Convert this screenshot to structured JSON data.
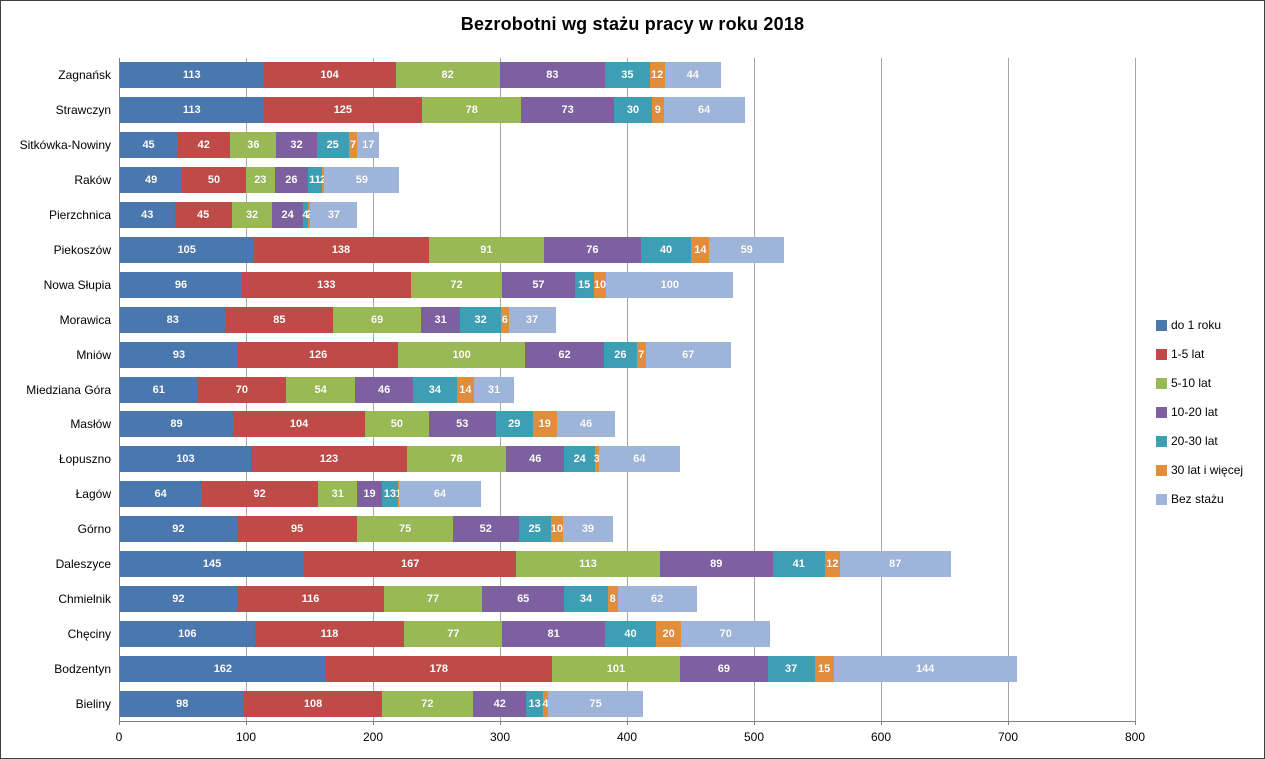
{
  "chart_data": {
    "type": "bar",
    "orientation": "horizontal",
    "stacked": true,
    "title": "Bezrobotni wg stażu pracy w roku 2018",
    "categories": [
      "Zagnańsk",
      "Strawczyn",
      "Sitkówka-Nowiny",
      "Raków",
      "Pierzchnica",
      "Piekoszów",
      "Nowa Słupia",
      "Morawica",
      "Mniów",
      "Miedziana Góra",
      "Masłów",
      "Łopuszno",
      "Łagów",
      "Górno",
      "Daleszyce",
      "Chmielnik",
      "Chęciny",
      "Bodzentyn",
      "Bieliny"
    ],
    "series": [
      {
        "name": "do 1 roku",
        "color": "#4977ae",
        "values": [
          113,
          113,
          45,
          49,
          43,
          105,
          96,
          83,
          93,
          61,
          89,
          103,
          64,
          92,
          145,
          92,
          106,
          162,
          98
        ]
      },
      {
        "name": "1-5 lat",
        "color": "#be4b48",
        "values": [
          104,
          125,
          42,
          50,
          45,
          138,
          133,
          85,
          126,
          70,
          104,
          123,
          92,
          95,
          167,
          116,
          118,
          178,
          108
        ]
      },
      {
        "name": "5-10 lat",
        "color": "#98b954",
        "values": [
          82,
          78,
          36,
          23,
          32,
          91,
          72,
          69,
          100,
          54,
          50,
          78,
          31,
          75,
          113,
          77,
          77,
          101,
          72
        ]
      },
      {
        "name": "10-20 lat",
        "color": "#7d60a0",
        "values": [
          83,
          73,
          32,
          26,
          24,
          76,
          57,
          31,
          62,
          46,
          53,
          46,
          19,
          52,
          89,
          65,
          81,
          69,
          42
        ]
      },
      {
        "name": "20-30 lat",
        "color": "#3d9fb4",
        "values": [
          35,
          30,
          25,
          11,
          4,
          40,
          15,
          32,
          26,
          34,
          29,
          24,
          13,
          25,
          41,
          34,
          40,
          37,
          13
        ]
      },
      {
        "name": "30 lat i więcej",
        "color": "#e08d3c",
        "values": [
          12,
          9,
          7,
          2,
          2,
          14,
          10,
          6,
          7,
          14,
          19,
          3,
          1,
          10,
          12,
          8,
          20,
          15,
          4
        ]
      },
      {
        "name": "Bez stażu",
        "color": "#9fb4d9",
        "values": [
          44,
          64,
          17,
          59,
          37,
          59,
          100,
          37,
          67,
          31,
          46,
          64,
          64,
          39,
          87,
          62,
          70,
          144,
          75
        ]
      }
    ],
    "xlim": [
      0,
      800
    ],
    "x_ticks": [
      0,
      100,
      200,
      300,
      400,
      500,
      600,
      700,
      800
    ],
    "grid": true,
    "legend_position": "right",
    "data_labels": "inside-center-white"
  }
}
